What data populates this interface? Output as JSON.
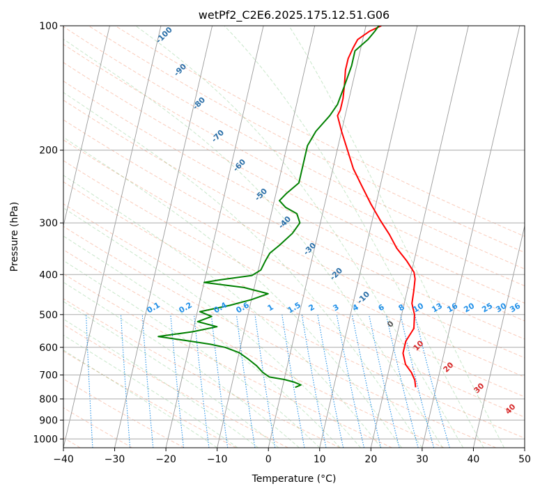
{
  "chart_data": {
    "type": "line",
    "title": "wetPf2_C2E6.2025.175.12.51.G06",
    "xlabel": "Temperature (°C)",
    "ylabel": "Pressure (hPa)",
    "xlim": [
      -40,
      50
    ],
    "ylim": [
      1050,
      100
    ],
    "y_scale": "log",
    "x_ticks": [
      -40,
      -30,
      -20,
      -10,
      0,
      10,
      20,
      30,
      40,
      50
    ],
    "x_tick_labels": [
      "−40",
      "−30",
      "−20",
      "−10",
      "0",
      "10",
      "20",
      "30",
      "40",
      "50"
    ],
    "y_ticks": [
      100,
      200,
      300,
      400,
      500,
      600,
      700,
      800,
      900,
      1000
    ],
    "y_tick_labels": [
      "100",
      "200",
      "300",
      "400",
      "500",
      "600",
      "700",
      "800",
      "900",
      "1000"
    ],
    "grid": true,
    "series": [
      {
        "color": "#ff0000",
        "points": [
          [
            26,
            750
          ],
          [
            25.5,
            720
          ],
          [
            24.5,
            690
          ],
          [
            23,
            660
          ],
          [
            22,
            620
          ],
          [
            22,
            580
          ],
          [
            23,
            540
          ],
          [
            22.5,
            500
          ],
          [
            21.5,
            470
          ],
          [
            21.3,
            440
          ],
          [
            21,
            410
          ],
          [
            20.5,
            395
          ],
          [
            18.5,
            370
          ],
          [
            16,
            345
          ],
          [
            14,
            320
          ],
          [
            11.5,
            295
          ],
          [
            9,
            270
          ],
          [
            6.5,
            245
          ],
          [
            4,
            222
          ],
          [
            2,
            200
          ],
          [
            0,
            180
          ],
          [
            -1.5,
            165
          ],
          [
            -1.2,
            160
          ],
          [
            -1.2,
            150
          ],
          [
            -1.5,
            140
          ],
          [
            -2,
            128
          ],
          [
            -2,
            120
          ],
          [
            -1.5,
            113
          ],
          [
            -1,
            108
          ],
          [
            1,
            103
          ],
          [
            3,
            100
          ]
        ]
      },
      {
        "color": "#008000",
        "points": [
          [
            2.5,
            750
          ],
          [
            3.5,
            740
          ],
          [
            2,
            728
          ],
          [
            0,
            718
          ],
          [
            -3,
            708
          ],
          [
            -4.5,
            690
          ],
          [
            -6,
            665
          ],
          [
            -8,
            640
          ],
          [
            -10,
            618
          ],
          [
            -13,
            600
          ],
          [
            -16,
            590
          ],
          [
            -20,
            580
          ],
          [
            -26.5,
            565
          ],
          [
            -20,
            550
          ],
          [
            -15.5,
            535
          ],
          [
            -19.5,
            520
          ],
          [
            -17,
            505
          ],
          [
            -19.5,
            492
          ],
          [
            -14,
            475
          ],
          [
            -10,
            460
          ],
          [
            -7,
            445
          ],
          [
            -12,
            430
          ],
          [
            -20,
            418
          ],
          [
            -17,
            412
          ],
          [
            -11,
            402
          ],
          [
            -9.5,
            390
          ],
          [
            -9,
            370
          ],
          [
            -8.5,
            355
          ],
          [
            -7,
            340
          ],
          [
            -5,
            318
          ],
          [
            -4,
            300
          ],
          [
            -5,
            285
          ],
          [
            -7.5,
            275
          ],
          [
            -9,
            265
          ],
          [
            -8,
            255
          ],
          [
            -6,
            240
          ],
          [
            -6,
            225
          ],
          [
            -6,
            210
          ],
          [
            -6,
            195
          ],
          [
            -5,
            180
          ],
          [
            -3,
            165
          ],
          [
            -2,
            155
          ],
          [
            -1.5,
            140
          ],
          [
            -1,
            125
          ],
          [
            -1,
            115
          ],
          [
            1,
            108
          ],
          [
            2,
            103
          ],
          [
            2.5,
            100
          ]
        ]
      }
    ],
    "mixing_ratio_labels": [
      "0.1",
      "0.2",
      "0.4",
      "0.6",
      "1",
      "1.5",
      "2",
      "3",
      "4",
      "6",
      "8",
      "10",
      "13",
      "16",
      "20",
      "25",
      "30",
      "36"
    ],
    "dry_adiabat_labels": [
      "-100",
      "-90",
      "-80",
      "-70",
      "-60",
      "-50",
      "-40",
      "-30",
      "-20",
      "-10"
    ],
    "moist_adiabat_labels": [
      "0",
      "10",
      "20",
      "30",
      "40"
    ]
  }
}
